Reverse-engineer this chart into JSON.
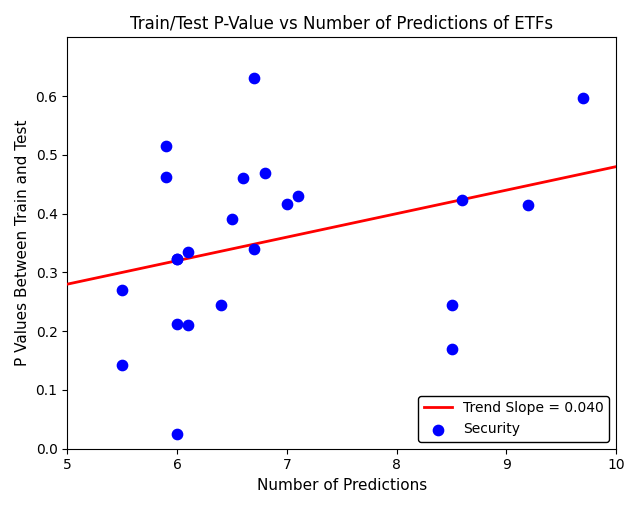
{
  "title": "Train/Test P-Value vs Number of Predictions of ETFs",
  "xlabel": "Number of Predictions",
  "ylabel": "P Values Between Train and Test",
  "scatter_x": [
    5.5,
    5.5,
    5.9,
    5.9,
    6.0,
    6.0,
    6.0,
    6.1,
    6.1,
    6.4,
    6.5,
    6.6,
    6.7,
    6.7,
    6.8,
    7.0,
    7.1,
    8.5,
    8.5,
    8.6,
    9.2,
    6.0,
    9.7
  ],
  "scatter_y": [
    0.143,
    0.27,
    0.515,
    0.463,
    0.323,
    0.322,
    0.213,
    0.335,
    0.21,
    0.245,
    0.391,
    0.46,
    0.631,
    0.34,
    0.47,
    0.416,
    0.43,
    0.17,
    0.245,
    0.424,
    0.415,
    0.025,
    0.597
  ],
  "scatter_color": "#0000ff",
  "scatter_size": 55,
  "trend_slope": 0.04,
  "trend_intercept": 0.08,
  "trend_color": "#ff0000",
  "trend_linewidth": 2.0,
  "xlim": [
    5,
    10
  ],
  "ylim": [
    0.0,
    0.7
  ],
  "yticks": [
    0.0,
    0.1,
    0.2,
    0.3,
    0.4,
    0.5,
    0.6
  ],
  "xticks": [
    5,
    6,
    7,
    8,
    9,
    10
  ],
  "legend_trend_label": "Trend Slope = 0.040",
  "legend_security_label": "Security",
  "title_fontsize": 12,
  "axis_label_fontsize": 11,
  "legend_fontsize": 10
}
